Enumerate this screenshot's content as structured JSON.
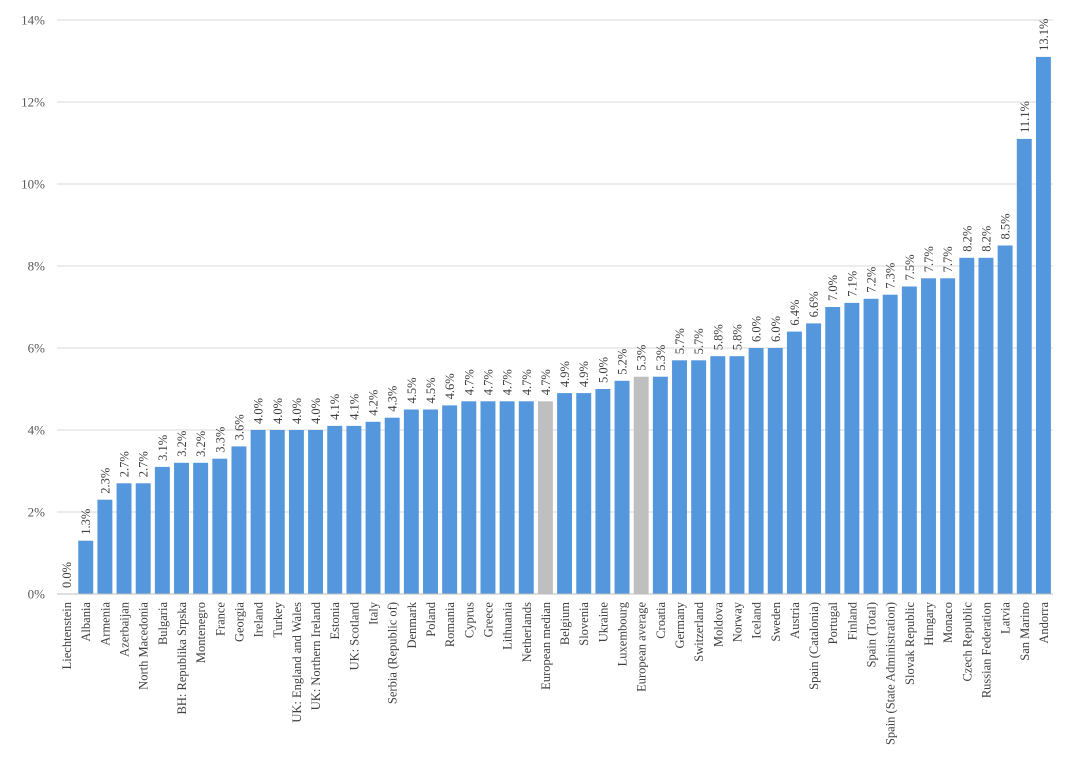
{
  "chart_data": {
    "type": "bar",
    "title": "",
    "xlabel": "",
    "ylabel": "",
    "ylim": [
      0,
      14
    ],
    "y_ticks": [
      "0%",
      "2%",
      "4%",
      "6%",
      "8%",
      "10%",
      "12%",
      "14%"
    ],
    "grid": true,
    "legend": "none",
    "colors": {
      "bar": "#5597dd",
      "highlight": "#bfbfbf"
    },
    "highlighted_categories": [
      "European median",
      "European average"
    ],
    "categories": [
      "Liechtenstein",
      "Albania",
      "Armenia",
      "Azerbaijan",
      "North Macedonia",
      "Bulgaria",
      "BH: Republika Srpska",
      "Montenegro",
      "France",
      "Georgia",
      "Ireland",
      "Turkey",
      "UK: England and Wales",
      "UK: Northern Ireland",
      "Estonia",
      "UK: Scotland",
      "Italy",
      "Serbia (Republic of)",
      "Denmark",
      "Poland",
      "Romania",
      "Cyprus",
      "Greece",
      "Lithuania",
      "Netherlands",
      "European median",
      "Belgium",
      "Slovenia",
      "Ukraine",
      "Luxembourg",
      "European average",
      "Croatia",
      "Germany",
      "Switzerland",
      "Moldova",
      "Norway",
      "Iceland",
      "Sweden",
      "Austria",
      "Spain (Catalonia)",
      "Portugal",
      "Finland",
      "Spain (Total)",
      "Spain (State Administration)",
      "Slovak Republic",
      "Hungary",
      "Monaco",
      "Czech Republic",
      "Russian Federation",
      "Latvia",
      "San Marino",
      "Andorra"
    ],
    "values": [
      0.0,
      1.3,
      2.3,
      2.7,
      2.7,
      3.1,
      3.2,
      3.2,
      3.3,
      3.6,
      4.0,
      4.0,
      4.0,
      4.0,
      4.1,
      4.1,
      4.2,
      4.3,
      4.5,
      4.5,
      4.6,
      4.7,
      4.7,
      4.7,
      4.7,
      4.7,
      4.9,
      4.9,
      5.0,
      5.2,
      5.3,
      5.3,
      5.7,
      5.7,
      5.8,
      5.8,
      6.0,
      6.0,
      6.4,
      6.6,
      7.0,
      7.1,
      7.2,
      7.3,
      7.5,
      7.7,
      7.7,
      8.2,
      8.2,
      8.5,
      11.1,
      13.1
    ],
    "data_labels": [
      "0.0%",
      "1.3%",
      "2.3%",
      "2.7%",
      "2.7%",
      "3.1%",
      "3.2%",
      "3.2%",
      "3.3%",
      "3.6%",
      "4.0%",
      "4.0%",
      "4.0%",
      "4.0%",
      "4.1%",
      "4.1%",
      "4.2%",
      "4.3%",
      "4.5%",
      "4.5%",
      "4.6%",
      "4.7%",
      "4.7%",
      "4.7%",
      "4.7%",
      "4.7%",
      "4.9%",
      "4.9%",
      "5.0%",
      "5.2%",
      "5.3%",
      "5.3%",
      "5.7%",
      "5.7%",
      "5.8%",
      "5.8%",
      "6.0%",
      "6.0%",
      "6.4%",
      "6.6%",
      "7.0%",
      "7.1%",
      "7.2%",
      "7.3%",
      "7.5%",
      "7.7%",
      "7.7%",
      "8.2%",
      "8.2%",
      "8.5%",
      "11.1%",
      "13.1%"
    ]
  }
}
